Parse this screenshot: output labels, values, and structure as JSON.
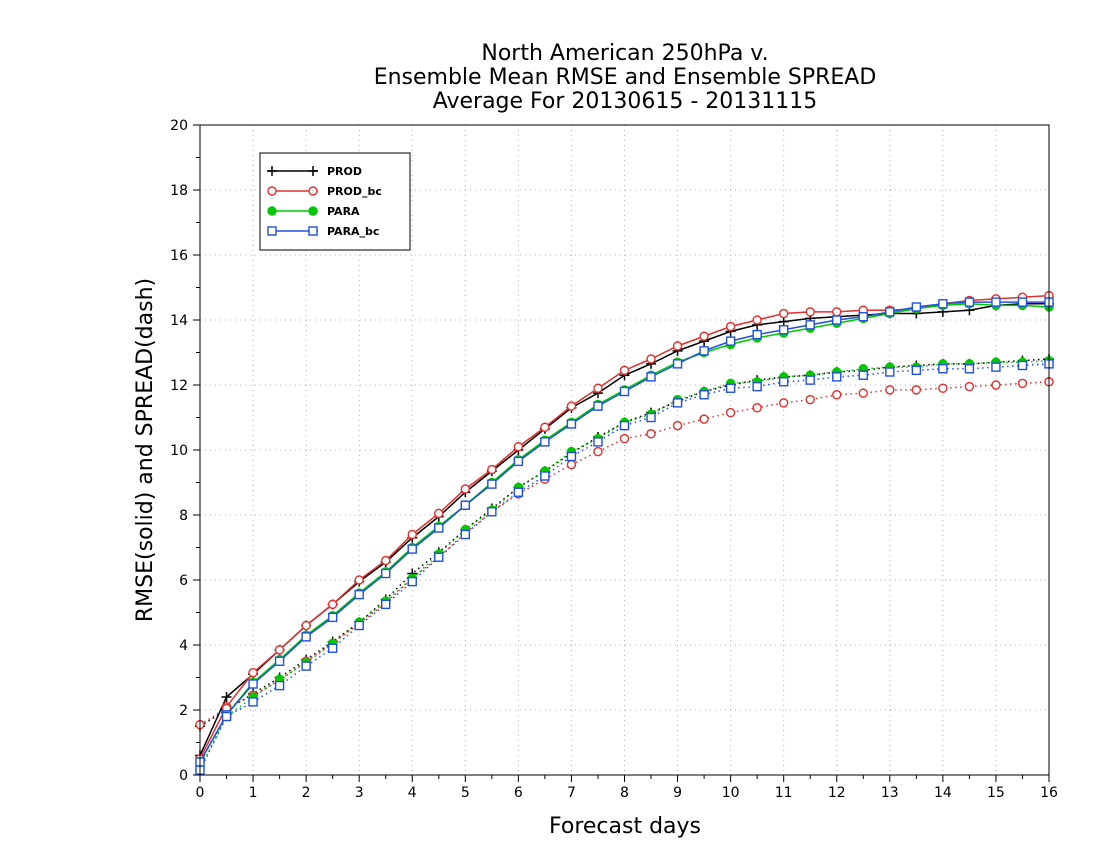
{
  "chart_data": {
    "type": "line",
    "title": [
      "North American 250hPa v.",
      "Ensemble Mean RMSE and Ensemble SPREAD",
      "Average For 20130615 - 20131115"
    ],
    "xlabel": "Forecast days",
    "ylabel": "RMSE(solid) and SPREAD(dash)",
    "xlim": [
      0,
      16
    ],
    "ylim": [
      0,
      20
    ],
    "xticks": [
      0,
      1,
      2,
      3,
      4,
      5,
      6,
      7,
      8,
      9,
      10,
      11,
      12,
      13,
      14,
      15,
      16
    ],
    "yticks": [
      0,
      2,
      4,
      6,
      8,
      10,
      12,
      14,
      16,
      18,
      20
    ],
    "grid": true,
    "legend_position": "top-left",
    "x": [
      0,
      0.5,
      1,
      1.5,
      2,
      2.5,
      3,
      3.5,
      4,
      4.5,
      5,
      5.5,
      6,
      6.5,
      7,
      7.5,
      8,
      8.5,
      9,
      9.5,
      10,
      10.5,
      11,
      11.5,
      12,
      12.5,
      13,
      13.5,
      14,
      14.5,
      15,
      15.5,
      16
    ],
    "series": [
      {
        "name": "PROD",
        "color": "#000000",
        "marker": "plus",
        "rmse": [
          0.6,
          2.4,
          3.1,
          3.85,
          4.6,
          5.25,
          5.95,
          6.55,
          7.3,
          7.95,
          8.7,
          9.35,
          10.0,
          10.65,
          11.3,
          11.75,
          12.3,
          12.65,
          13.05,
          13.35,
          13.65,
          13.85,
          13.95,
          14.05,
          14.1,
          14.15,
          14.2,
          14.2,
          14.25,
          14.3,
          14.45,
          14.5,
          14.5
        ],
        "spread": [
          1.5,
          2.0,
          2.5,
          3.0,
          3.55,
          4.1,
          4.7,
          5.4,
          6.2,
          6.85,
          7.55,
          8.2,
          8.85,
          9.35,
          9.9,
          10.4,
          10.85,
          11.15,
          11.5,
          11.8,
          12.0,
          12.15,
          12.25,
          12.3,
          12.4,
          12.45,
          12.55,
          12.6,
          12.65,
          12.65,
          12.7,
          12.75,
          12.8
        ]
      },
      {
        "name": "PROD_bc",
        "color": "#e03030",
        "marker": "circle",
        "rmse": [
          0.5,
          2.1,
          3.15,
          3.85,
          4.6,
          5.25,
          6.0,
          6.6,
          7.4,
          8.05,
          8.8,
          9.4,
          10.1,
          10.7,
          11.35,
          11.9,
          12.45,
          12.8,
          13.2,
          13.5,
          13.8,
          14.0,
          14.2,
          14.25,
          14.25,
          14.3,
          14.3,
          14.35,
          14.5,
          14.6,
          14.65,
          14.7,
          14.75
        ],
        "spread": [
          1.55,
          2.05,
          2.45,
          2.9,
          3.5,
          4.05,
          4.65,
          5.3,
          6.05,
          6.7,
          7.45,
          8.1,
          8.65,
          9.1,
          9.55,
          9.95,
          10.35,
          10.5,
          10.75,
          10.95,
          11.15,
          11.3,
          11.45,
          11.55,
          11.7,
          11.75,
          11.85,
          11.85,
          11.9,
          11.95,
          12.0,
          12.05,
          12.1
        ]
      },
      {
        "name": "PARA",
        "color": "#00c800",
        "marker": "filled-circle",
        "rmse": [
          0.4,
          1.85,
          2.85,
          3.55,
          4.3,
          4.9,
          5.6,
          6.25,
          7.0,
          7.65,
          8.3,
          9.0,
          9.7,
          10.3,
          10.85,
          11.4,
          11.85,
          12.3,
          12.7,
          13.0,
          13.25,
          13.45,
          13.6,
          13.75,
          13.9,
          14.05,
          14.2,
          14.35,
          14.45,
          14.5,
          14.45,
          14.45,
          14.4
        ],
        "spread": [
          0.2,
          1.8,
          2.4,
          2.95,
          3.45,
          4.05,
          4.7,
          5.35,
          6.05,
          6.8,
          7.55,
          8.15,
          8.85,
          9.35,
          9.95,
          10.35,
          10.85,
          11.1,
          11.55,
          11.8,
          12.05,
          12.1,
          12.25,
          12.3,
          12.4,
          12.5,
          12.55,
          12.55,
          12.65,
          12.65,
          12.7,
          12.7,
          12.75
        ]
      },
      {
        "name": "PARA_bc",
        "color": "#2050e0",
        "marker": "square",
        "rmse": [
          0.4,
          1.85,
          2.8,
          3.5,
          4.25,
          4.85,
          5.55,
          6.2,
          6.95,
          7.6,
          8.3,
          8.95,
          9.65,
          10.25,
          10.8,
          11.35,
          11.8,
          12.25,
          12.65,
          13.05,
          13.35,
          13.55,
          13.7,
          13.85,
          14.0,
          14.1,
          14.25,
          14.4,
          14.5,
          14.55,
          14.55,
          14.55,
          14.55
        ],
        "spread": [
          0.15,
          1.8,
          2.25,
          2.75,
          3.35,
          3.9,
          4.6,
          5.25,
          5.95,
          6.7,
          7.4,
          8.1,
          8.7,
          9.2,
          9.8,
          10.25,
          10.75,
          11.0,
          11.45,
          11.7,
          11.9,
          11.95,
          12.1,
          12.15,
          12.25,
          12.3,
          12.4,
          12.45,
          12.5,
          12.5,
          12.55,
          12.6,
          12.65
        ]
      }
    ]
  }
}
